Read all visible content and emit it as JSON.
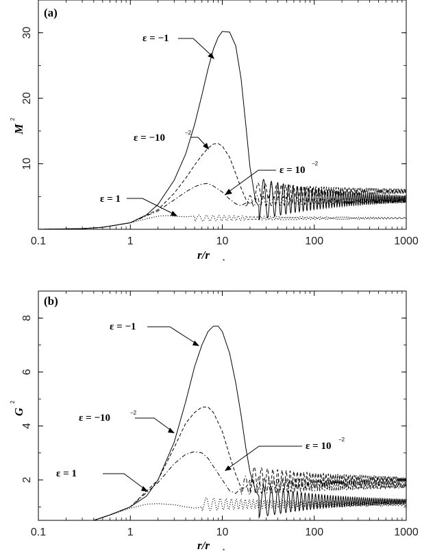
{
  "chart_data": [
    {
      "type": "line",
      "panel_label": "(a)",
      "xscale": "log",
      "xlim": [
        0.1,
        1000
      ],
      "ylim": [
        0,
        35
      ],
      "xlabel": "r/r",
      "xlabel_sub": "*",
      "ylabel": "M",
      "ylabel_sup": "2",
      "x_ticks": [
        "0.1",
        "1",
        "10",
        "100",
        "1000"
      ],
      "y_ticks": [
        "10",
        "20",
        "30"
      ],
      "y_tick_values": [
        10,
        20,
        30
      ],
      "series": [
        {
          "label_text": "ε = −1",
          "style": "solid",
          "points": [
            [
              0.1,
              0
            ],
            [
              0.3,
              0.1
            ],
            [
              0.5,
              0.3
            ],
            [
              1,
              1
            ],
            [
              1.5,
              2.2
            ],
            [
              2,
              3.8
            ],
            [
              3,
              7.5
            ],
            [
              4,
              11.5
            ],
            [
              5,
              16
            ],
            [
              6,
              20.5
            ],
            [
              7,
              24.5
            ],
            [
              8,
              27.5
            ],
            [
              9,
              29.3
            ],
            [
              10,
              30.2
            ],
            [
              12,
              30.1
            ],
            [
              14,
              28
            ],
            [
              16,
              23
            ],
            [
              18,
              16
            ],
            [
              20,
              9.5
            ],
            [
              23,
              4.3
            ],
            [
              25,
              3.5
            ]
          ],
          "tail": {
            "start": 25,
            "mean": 4.6,
            "amp0": 3.2,
            "amp_end": 0.5,
            "decay": 0.015,
            "cycles_per_decade": 9
          }
        },
        {
          "label_text": "ε = −10",
          "label_sup": "−2",
          "style": "dash",
          "points": [
            [
              0.1,
              0
            ],
            [
              0.3,
              0.1
            ],
            [
              0.5,
              0.3
            ],
            [
              1,
              1
            ],
            [
              2,
              3
            ],
            [
              3,
              5.5
            ],
            [
              4,
              7.8
            ],
            [
              5,
              9.8
            ],
            [
              6,
              11.3
            ],
            [
              7,
              12.4
            ],
            [
              8,
              13
            ],
            [
              9,
              13.1
            ],
            [
              10,
              12.7
            ],
            [
              12,
              11
            ],
            [
              14,
              8.5
            ],
            [
              16,
              6.3
            ],
            [
              18,
              4.6
            ],
            [
              20,
              3.8
            ],
            [
              22,
              4.5
            ]
          ],
          "tail": {
            "start": 22,
            "mean": 5.8,
            "amp0": 1.3,
            "amp_end": 0.3,
            "decay": 0.02,
            "cycles_per_decade": 10
          }
        },
        {
          "label_text": "ε = 10",
          "label_sup": "−2",
          "style": "dashdot",
          "points": [
            [
              0.1,
              0
            ],
            [
              0.3,
              0.1
            ],
            [
              0.5,
              0.3
            ],
            [
              1,
              1
            ],
            [
              2,
              2.8
            ],
            [
              3,
              4.5
            ],
            [
              4,
              5.7
            ],
            [
              5,
              6.5
            ],
            [
              6,
              6.9
            ],
            [
              7,
              7
            ],
            [
              8,
              6.6
            ],
            [
              10,
              5.7
            ],
            [
              12,
              4.6
            ],
            [
              14,
              3.9
            ],
            [
              16,
              3.6
            ],
            [
              18,
              4
            ]
          ],
          "tail": {
            "start": 18,
            "mean": 4.3,
            "amp0": 0.9,
            "amp_end": 0.2,
            "decay": 0.02,
            "cycles_per_decade": 10
          }
        },
        {
          "label_text": "ε = 1",
          "label_sup": "",
          "style": "dot",
          "points": [
            [
              0.1,
              0
            ],
            [
              0.3,
              0.1
            ],
            [
              0.5,
              0.3
            ],
            [
              1,
              1
            ],
            [
              1.5,
              1.6
            ],
            [
              2,
              2
            ],
            [
              2.5,
              2.1
            ],
            [
              3,
              2
            ],
            [
              4,
              1.9
            ],
            [
              5,
              2
            ]
          ],
          "tail": {
            "start": 5,
            "mean": 1.7,
            "amp0": 0.5,
            "amp_end": 0.1,
            "decay": 0.02,
            "cycles_per_decade": 10
          }
        }
      ]
    },
    {
      "type": "line",
      "panel_label": "(b)",
      "xscale": "log",
      "xlim": [
        0.1,
        1000
      ],
      "ylim": [
        0.5,
        9
      ],
      "xlabel": "r/r",
      "xlabel_sub": "*",
      "ylabel": "G",
      "ylabel_sup": "2",
      "x_ticks": [
        "0.1",
        "1",
        "10",
        "100",
        "1000"
      ],
      "y_ticks": [
        "2",
        "4",
        "6",
        "8"
      ],
      "y_tick_values": [
        2,
        4,
        6,
        8
      ],
      "series": [
        {
          "label_text": "ε = −1",
          "style": "solid",
          "points": [
            [
              0.4,
              0.5
            ],
            [
              0.6,
              0.7
            ],
            [
              1,
              1
            ],
            [
              1.5,
              1.4
            ],
            [
              2,
              2
            ],
            [
              3,
              3.4
            ],
            [
              4,
              4.9
            ],
            [
              5,
              6.2
            ],
            [
              6,
              7
            ],
            [
              7,
              7.5
            ],
            [
              8,
              7.7
            ],
            [
              9,
              7.7
            ],
            [
              10,
              7.5
            ],
            [
              12,
              6.7
            ],
            [
              14,
              5.6
            ],
            [
              16,
              4.4
            ],
            [
              18,
              3.2
            ],
            [
              20,
              2.3
            ],
            [
              23,
              1.6
            ],
            [
              25,
              1.4
            ]
          ],
          "tail": {
            "start": 25,
            "mean": 1.2,
            "amp0": 0.6,
            "amp_end": 0.08,
            "decay": 0.02,
            "cycles_per_decade": 9
          }
        },
        {
          "label_text": "ε = −10",
          "label_sup": "−2",
          "style": "dash",
          "points": [
            [
              0.4,
              0.5
            ],
            [
              0.6,
              0.7
            ],
            [
              1,
              1
            ],
            [
              2,
              2
            ],
            [
              3,
              3.2
            ],
            [
              4,
              4.1
            ],
            [
              5,
              4.5
            ],
            [
              6,
              4.7
            ],
            [
              7,
              4.7
            ],
            [
              8,
              4.5
            ],
            [
              10,
              3.8
            ],
            [
              12,
              2.9
            ],
            [
              14,
              2.2
            ],
            [
              16,
              1.7
            ],
            [
              18,
              1.7
            ],
            [
              20,
              2
            ]
          ],
          "tail": {
            "start": 20,
            "mean": 2,
            "amp0": 0.5,
            "amp_end": 0.1,
            "decay": 0.02,
            "cycles_per_decade": 10
          }
        },
        {
          "label_text": "ε = 10",
          "label_sup": "−2",
          "style": "dashdot",
          "points": [
            [
              0.4,
              0.5
            ],
            [
              0.6,
              0.7
            ],
            [
              1,
              1
            ],
            [
              2,
              1.9
            ],
            [
              3,
              2.6
            ],
            [
              4,
              2.95
            ],
            [
              5,
              3.05
            ],
            [
              6,
              3
            ],
            [
              7,
              2.8
            ],
            [
              8,
              2.5
            ],
            [
              10,
              2
            ],
            [
              12,
              1.6
            ],
            [
              14,
              1.5
            ],
            [
              16,
              1.7
            ]
          ],
          "tail": {
            "start": 16,
            "mean": 1.8,
            "amp0": 0.35,
            "amp_end": 0.1,
            "decay": 0.02,
            "cycles_per_decade": 10
          }
        },
        {
          "label_text": "ε = 1",
          "label_sup": "",
          "style": "dot",
          "points": [
            [
              0.4,
              0.5
            ],
            [
              0.6,
              0.7
            ],
            [
              1,
              0.95
            ],
            [
              1.5,
              1.1
            ],
            [
              2,
              1.12
            ],
            [
              3,
              1.08
            ],
            [
              4,
              1
            ],
            [
              5,
              0.95
            ],
            [
              6,
              1
            ]
          ],
          "tail": {
            "start": 6,
            "mean": 1.1,
            "amp0": 0.25,
            "amp_end": 0.05,
            "decay": 0.02,
            "cycles_per_decade": 10
          }
        }
      ]
    }
  ]
}
